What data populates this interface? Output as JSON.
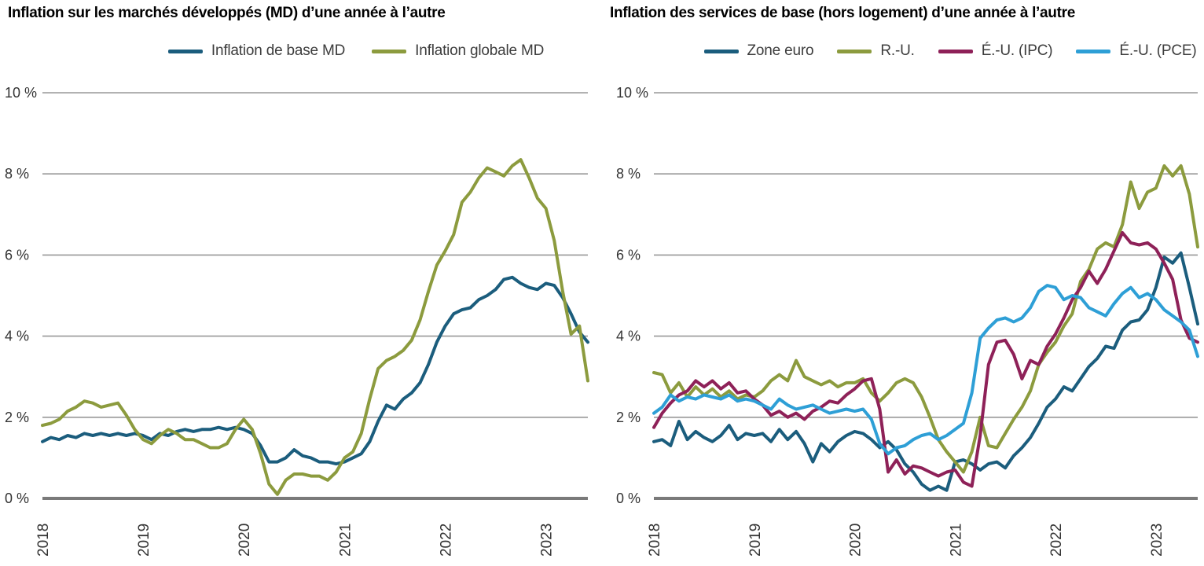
{
  "page": {
    "background": "#ffffff",
    "grid_color": "#989898",
    "axis_color": "#7a7a7a",
    "tick_text_color": "#333333"
  },
  "chart_data": [
    {
      "type": "line",
      "title": "Inflation sur les marchés développés (MD) d’une année à l’autre",
      "x_unit": "month",
      "x_start": "2018-01",
      "x_end": "2023-06",
      "x_ticks": [
        "2018",
        "2019",
        "2020",
        "2021",
        "2022",
        "2023"
      ],
      "ylim": [
        0,
        10
      ],
      "y_ticks": [
        0,
        2,
        4,
        6,
        8,
        10
      ],
      "y_tick_labels": [
        "0 %",
        "2 %",
        "4 %",
        "6 %",
        "8 %",
        "10 %"
      ],
      "grid": "horizontal",
      "legend_position": "top",
      "series": [
        {
          "name": "Inflation de base MD",
          "color": "#1b5d7d",
          "values": [
            1.4,
            1.5,
            1.45,
            1.55,
            1.5,
            1.6,
            1.55,
            1.6,
            1.55,
            1.6,
            1.55,
            1.6,
            1.55,
            1.45,
            1.6,
            1.55,
            1.65,
            1.7,
            1.65,
            1.7,
            1.7,
            1.75,
            1.7,
            1.75,
            1.7,
            1.6,
            1.3,
            0.9,
            0.9,
            1.0,
            1.2,
            1.05,
            1.0,
            0.9,
            0.9,
            0.85,
            0.9,
            1.0,
            1.1,
            1.4,
            1.9,
            2.3,
            2.2,
            2.45,
            2.6,
            2.85,
            3.3,
            3.85,
            4.25,
            4.55,
            4.65,
            4.7,
            4.9,
            5.0,
            5.15,
            5.4,
            5.45,
            5.3,
            5.2,
            5.15,
            5.3,
            5.25,
            4.95,
            4.55,
            4.1,
            3.85
          ]
        },
        {
          "name": "Inflation globale MD",
          "color": "#8c9b3e",
          "values": [
            1.8,
            1.85,
            1.95,
            2.15,
            2.25,
            2.4,
            2.35,
            2.25,
            2.3,
            2.35,
            2.05,
            1.7,
            1.45,
            1.35,
            1.55,
            1.7,
            1.6,
            1.45,
            1.45,
            1.35,
            1.25,
            1.25,
            1.35,
            1.7,
            1.95,
            1.7,
            1.1,
            0.35,
            0.1,
            0.45,
            0.6,
            0.6,
            0.55,
            0.55,
            0.45,
            0.65,
            1.0,
            1.15,
            1.6,
            2.45,
            3.2,
            3.4,
            3.5,
            3.65,
            3.9,
            4.4,
            5.1,
            5.75,
            6.1,
            6.5,
            7.3,
            7.55,
            7.9,
            8.15,
            8.05,
            7.95,
            8.2,
            8.35,
            7.9,
            7.4,
            7.15,
            6.35,
            5.1,
            4.05,
            4.25,
            2.9
          ]
        }
      ]
    },
    {
      "type": "line",
      "title": "Inflation des services de base (hors logement) d’une année à l’autre",
      "x_unit": "month",
      "x_start": "2018-01",
      "x_end": "2023-06",
      "x_ticks": [
        "2018",
        "2019",
        "2020",
        "2021",
        "2022",
        "2023"
      ],
      "ylim": [
        0,
        10
      ],
      "y_ticks": [
        0,
        2,
        4,
        6,
        8,
        10
      ],
      "y_tick_labels": [
        "0 %",
        "2 %",
        "4 %",
        "6 %",
        "8 %",
        "10 %"
      ],
      "grid": "horizontal",
      "legend_position": "top",
      "series": [
        {
          "name": "Zone euro",
          "color": "#1b5d7d",
          "values": [
            1.4,
            1.45,
            1.3,
            1.9,
            1.45,
            1.65,
            1.5,
            1.4,
            1.55,
            1.8,
            1.45,
            1.6,
            1.55,
            1.6,
            1.4,
            1.7,
            1.45,
            1.65,
            1.35,
            0.9,
            1.35,
            1.15,
            1.4,
            1.55,
            1.65,
            1.6,
            1.45,
            1.25,
            1.4,
            1.2,
            0.85,
            0.65,
            0.35,
            0.2,
            0.3,
            0.2,
            0.9,
            0.95,
            0.85,
            0.7,
            0.85,
            0.9,
            0.75,
            1.05,
            1.25,
            1.5,
            1.85,
            2.25,
            2.45,
            2.75,
            2.65,
            2.95,
            3.25,
            3.45,
            3.75,
            3.7,
            4.15,
            4.35,
            4.4,
            4.65,
            5.2,
            5.95,
            5.8,
            6.05,
            5.2,
            4.3
          ]
        },
        {
          "name": "R.-U.",
          "color": "#8c9b3e",
          "values": [
            3.1,
            3.05,
            2.6,
            2.85,
            2.5,
            2.75,
            2.55,
            2.7,
            2.5,
            2.65,
            2.45,
            2.55,
            2.5,
            2.65,
            2.9,
            3.05,
            2.9,
            3.4,
            3.0,
            2.9,
            2.8,
            2.9,
            2.75,
            2.85,
            2.85,
            2.95,
            2.6,
            2.4,
            2.6,
            2.85,
            2.95,
            2.85,
            2.5,
            2.0,
            1.45,
            1.15,
            0.9,
            0.65,
            1.15,
            2.0,
            1.3,
            1.25,
            1.6,
            1.95,
            2.25,
            2.65,
            3.3,
            3.6,
            3.85,
            4.25,
            4.55,
            5.35,
            5.65,
            6.15,
            6.3,
            6.2,
            6.75,
            7.8,
            7.15,
            7.55,
            7.65,
            8.2,
            7.95,
            8.2,
            7.5,
            6.2
          ]
        },
        {
          "name": "É.-U. (IPC)",
          "color": "#8e2158",
          "values": [
            1.75,
            2.1,
            2.35,
            2.55,
            2.65,
            2.9,
            2.75,
            2.9,
            2.7,
            2.85,
            2.6,
            2.65,
            2.45,
            2.3,
            2.05,
            2.15,
            2.0,
            2.1,
            1.95,
            2.15,
            2.25,
            2.4,
            2.35,
            2.55,
            2.7,
            2.9,
            2.95,
            2.2,
            0.65,
            0.95,
            0.6,
            0.8,
            0.75,
            0.65,
            0.55,
            0.65,
            0.7,
            0.4,
            0.3,
            1.55,
            3.3,
            3.85,
            3.9,
            3.55,
            2.95,
            3.4,
            3.3,
            3.75,
            4.05,
            4.45,
            4.9,
            5.2,
            5.6,
            5.3,
            5.65,
            6.1,
            6.55,
            6.3,
            6.25,
            6.3,
            6.15,
            5.8,
            5.4,
            4.4,
            3.95,
            3.85
          ]
        },
        {
          "name": "É.-U. (PCE)",
          "color": "#2e9fd6",
          "values": [
            2.1,
            2.25,
            2.55,
            2.4,
            2.5,
            2.45,
            2.55,
            2.5,
            2.45,
            2.55,
            2.4,
            2.45,
            2.4,
            2.3,
            2.2,
            2.45,
            2.3,
            2.2,
            2.25,
            2.3,
            2.2,
            2.1,
            2.15,
            2.2,
            2.15,
            2.2,
            1.95,
            1.35,
            1.1,
            1.25,
            1.3,
            1.45,
            1.55,
            1.6,
            1.45,
            1.55,
            1.7,
            1.85,
            2.6,
            3.95,
            4.2,
            4.4,
            4.45,
            4.35,
            4.45,
            4.7,
            5.1,
            5.25,
            5.2,
            4.9,
            5.0,
            4.95,
            4.7,
            4.6,
            4.5,
            4.8,
            5.05,
            5.2,
            4.95,
            5.05,
            4.9,
            4.65,
            4.5,
            4.35,
            4.15,
            3.5
          ]
        }
      ]
    }
  ]
}
